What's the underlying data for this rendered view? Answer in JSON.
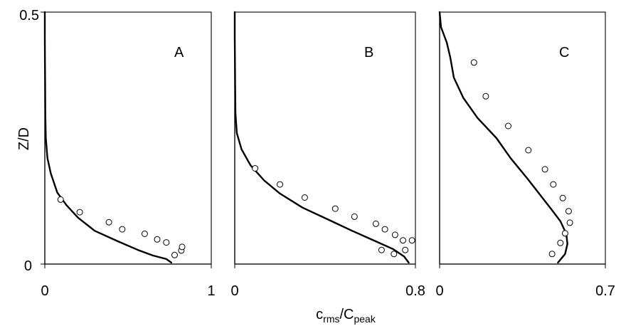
{
  "chart_data": [
    {
      "type": "line",
      "panel_label": "A",
      "ylabel": "Z/D",
      "xlim": [
        0,
        1
      ],
      "ylim": [
        0,
        0.5
      ],
      "x_tick_labels": [
        "0",
        "1"
      ],
      "y_tick_labels": [
        "0",
        "0.5"
      ],
      "series": [
        {
          "kind": "model-curve",
          "points": [
            [
              0.0,
              0.5
            ],
            [
              0.0,
              0.45
            ],
            [
              0.001,
              0.4
            ],
            [
              0.002,
              0.35
            ],
            [
              0.003,
              0.3
            ],
            [
              0.006,
              0.25
            ],
            [
              0.016,
              0.21
            ],
            [
              0.036,
              0.18
            ],
            [
              0.075,
              0.142
            ],
            [
              0.13,
              0.117
            ],
            [
              0.2,
              0.092
            ],
            [
              0.3,
              0.066
            ],
            [
              0.44,
              0.045
            ],
            [
              0.56,
              0.028
            ],
            [
              0.65,
              0.017
            ],
            [
              0.73,
              0.01
            ],
            [
              0.76,
              0.003
            ]
          ]
        },
        {
          "kind": "measured-points",
          "points": [
            [
              0.095,
              0.128
            ],
            [
              0.21,
              0.103
            ],
            [
              0.385,
              0.083
            ],
            [
              0.465,
              0.069
            ],
            [
              0.6,
              0.06
            ],
            [
              0.675,
              0.049
            ],
            [
              0.73,
              0.043
            ],
            [
              0.78,
              0.018
            ],
            [
              0.82,
              0.027
            ],
            [
              0.825,
              0.034
            ]
          ]
        }
      ]
    },
    {
      "type": "line",
      "panel_label": "B",
      "xlim": [
        0,
        0.8
      ],
      "ylim": [
        0,
        0.5
      ],
      "x_tick_labels": [
        "0",
        "0.8"
      ],
      "series": [
        {
          "kind": "model-curve",
          "points": [
            [
              0.0,
              0.5
            ],
            [
              0.0,
              0.45
            ],
            [
              0.001,
              0.4
            ],
            [
              0.002,
              0.35
            ],
            [
              0.003,
              0.3
            ],
            [
              0.009,
              0.26
            ],
            [
              0.03,
              0.228
            ],
            [
              0.07,
              0.196
            ],
            [
              0.13,
              0.166
            ],
            [
              0.2,
              0.14
            ],
            [
              0.3,
              0.112
            ],
            [
              0.42,
              0.087
            ],
            [
              0.52,
              0.066
            ],
            [
              0.62,
              0.046
            ],
            [
              0.7,
              0.03
            ],
            [
              0.75,
              0.015
            ],
            [
              0.77,
              0.003
            ]
          ]
        },
        {
          "kind": "measured-points",
          "points": [
            [
              0.09,
              0.19
            ],
            [
              0.2,
              0.158
            ],
            [
              0.31,
              0.132
            ],
            [
              0.445,
              0.11
            ],
            [
              0.53,
              0.094
            ],
            [
              0.625,
              0.08
            ],
            [
              0.665,
              0.069
            ],
            [
              0.71,
              0.058
            ],
            [
              0.745,
              0.047
            ],
            [
              0.785,
              0.047
            ],
            [
              0.755,
              0.028
            ],
            [
              0.705,
              0.02
            ],
            [
              0.65,
              0.028
            ]
          ]
        }
      ]
    },
    {
      "type": "line",
      "panel_label": "C",
      "xlim": [
        0,
        0.7
      ],
      "ylim": [
        0,
        0.5
      ],
      "x_tick_labels": [
        "0",
        "0.7"
      ],
      "series": [
        {
          "kind": "model-curve",
          "points": [
            [
              0.0,
              0.5
            ],
            [
              0.006,
              0.47
            ],
            [
              0.03,
              0.44
            ],
            [
              0.045,
              0.41
            ],
            [
              0.06,
              0.37
            ],
            [
              0.1,
              0.33
            ],
            [
              0.16,
              0.29
            ],
            [
              0.24,
              0.25
            ],
            [
              0.3,
              0.21
            ],
            [
              0.37,
              0.17
            ],
            [
              0.42,
              0.14
            ],
            [
              0.47,
              0.11
            ],
            [
              0.51,
              0.085
            ],
            [
              0.535,
              0.06
            ],
            [
              0.54,
              0.04
            ],
            [
              0.53,
              0.02
            ],
            [
              0.5,
              0.003
            ]
          ]
        },
        {
          "kind": "measured-points",
          "points": [
            [
              0.145,
              0.4
            ],
            [
              0.195,
              0.333
            ],
            [
              0.29,
              0.274
            ],
            [
              0.375,
              0.226
            ],
            [
              0.445,
              0.188
            ],
            [
              0.48,
              0.158
            ],
            [
              0.52,
              0.131
            ],
            [
              0.545,
              0.105
            ],
            [
              0.55,
              0.082
            ],
            [
              0.53,
              0.061
            ],
            [
              0.51,
              0.042
            ],
            [
              0.475,
              0.02
            ]
          ]
        }
      ]
    }
  ],
  "shared_xlabel": {
    "main": "c",
    "main_sub": "rms",
    "slash": "/C",
    "denominator_sub": "peak"
  }
}
